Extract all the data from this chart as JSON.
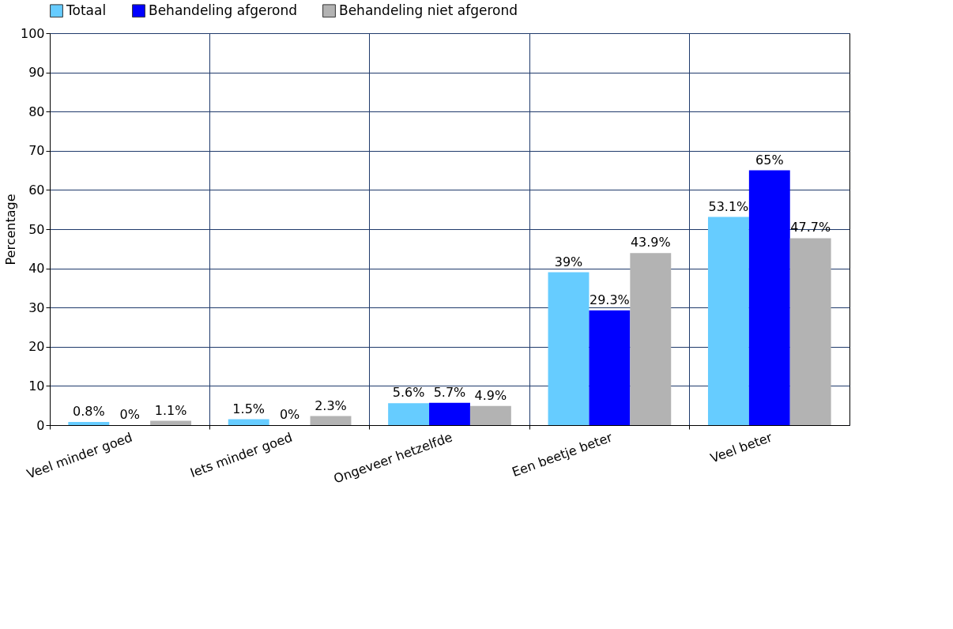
{
  "chart_data": {
    "type": "bar",
    "ylabel": "Percentage",
    "categories": [
      "Veel minder goed",
      "Iets minder goed",
      "Ongeveer hetzelfde",
      "Een beetje beter",
      "Veel beter"
    ],
    "series": [
      {
        "name": "Totaal",
        "color": "#66ccff",
        "values": [
          0.8,
          1.5,
          5.6,
          39,
          53.1
        ],
        "value_labels": [
          "0.8%",
          "1.5%",
          "5.6%",
          "39%",
          "53.1%"
        ]
      },
      {
        "name": "Behandeling afgerond",
        "color": "#0000ff",
        "values": [
          0,
          0,
          5.7,
          29.3,
          65
        ],
        "value_labels": [
          "0%",
          "0%",
          "5.7%",
          "29.3%",
          "65%"
        ]
      },
      {
        "name": "Behandeling niet afgerond",
        "color": "#b3b3b3",
        "values": [
          1.1,
          2.3,
          4.9,
          43.9,
          47.7
        ],
        "value_labels": [
          "1.1%",
          "2.3%",
          "4.9%",
          "43.9%",
          "47.7%"
        ]
      }
    ],
    "ylim": [
      0,
      100
    ],
    "yticks": [
      0,
      10,
      20,
      30,
      40,
      50,
      60,
      70,
      80,
      90,
      100
    ],
    "grid": true,
    "legend": "top left"
  }
}
